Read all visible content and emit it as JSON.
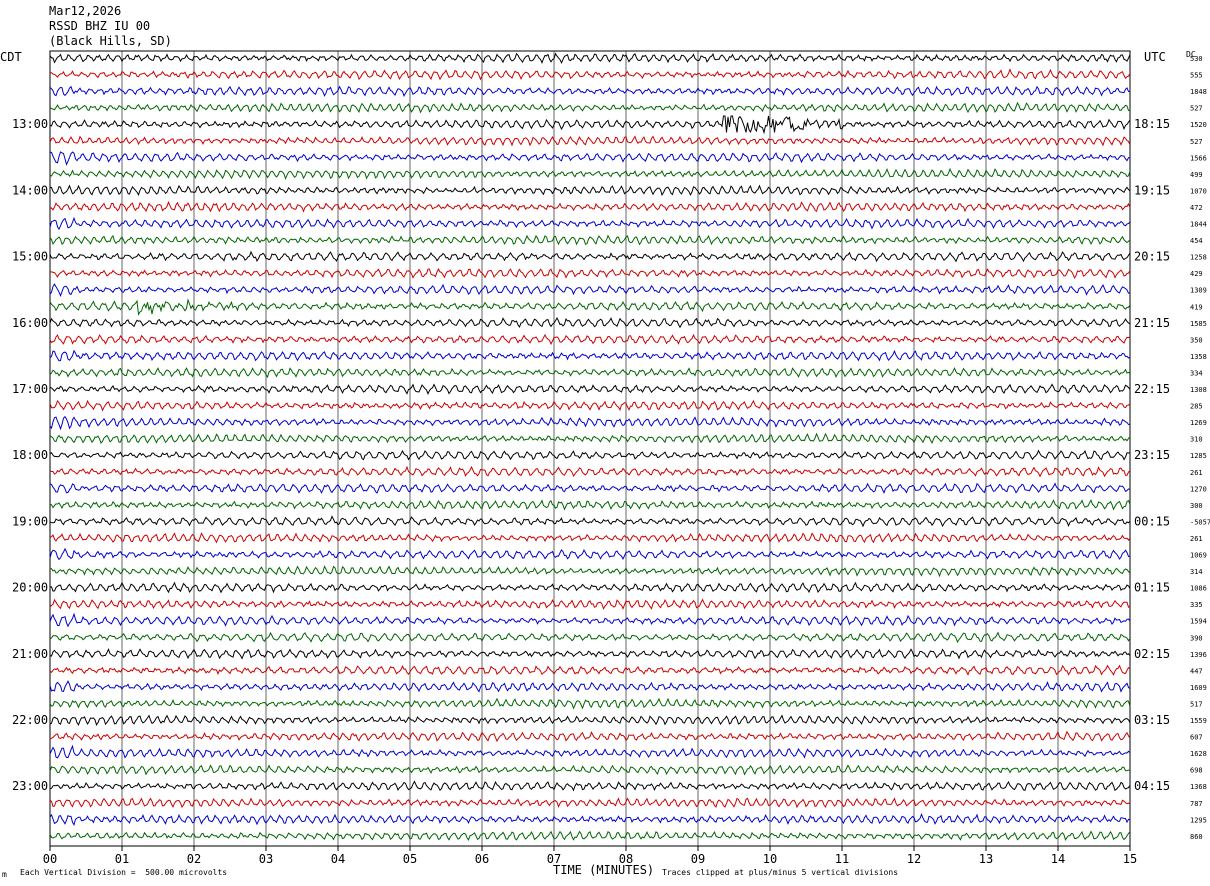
{
  "header": {
    "date": "Mar12,2026",
    "station": "RSSD BHZ IU 00",
    "location": "(Black Hills, SD)"
  },
  "left_zone": "CDT",
  "right_zone": "UTC",
  "dc_label": "DC",
  "footer": {
    "vertical_division": "Each Vertical Division =  500.00 microvolts",
    "clip_note": "Traces clipped at plus/minus 5 vertical divisions",
    "corner_mark": "m"
  },
  "colors": {
    "black": "#000000",
    "red": "#cc0000",
    "blue": "#0000cc",
    "green": "#006600",
    "grid": "#000000"
  },
  "chart_data": {
    "type": "line",
    "title": "",
    "xlabel": "TIME (MINUTES)",
    "ylabel": "",
    "xlim": [
      0,
      15
    ],
    "x_ticks": [
      "00",
      "01",
      "02",
      "03",
      "04",
      "05",
      "06",
      "07",
      "08",
      "09",
      "10",
      "11",
      "12",
      "13",
      "14",
      "15"
    ],
    "trace_count": 48,
    "trace_minutes": 15,
    "color_cycle": [
      "black",
      "red",
      "blue",
      "green"
    ],
    "left_hour_labels": [
      {
        "trace": 4,
        "label": "13:00"
      },
      {
        "trace": 8,
        "label": "14:00"
      },
      {
        "trace": 12,
        "label": "15:00"
      },
      {
        "trace": 16,
        "label": "16:00"
      },
      {
        "trace": 20,
        "label": "17:00"
      },
      {
        "trace": 24,
        "label": "18:00"
      },
      {
        "trace": 28,
        "label": "19:00"
      },
      {
        "trace": 32,
        "label": "20:00"
      },
      {
        "trace": 36,
        "label": "21:00"
      },
      {
        "trace": 40,
        "label": "22:00"
      },
      {
        "trace": 44,
        "label": "23:00"
      }
    ],
    "right_hour_labels": [
      {
        "trace": 4,
        "label": "18:15"
      },
      {
        "trace": 8,
        "label": "19:15"
      },
      {
        "trace": 12,
        "label": "20:15"
      },
      {
        "trace": 16,
        "label": "21:15"
      },
      {
        "trace": 20,
        "label": "22:15"
      },
      {
        "trace": 24,
        "label": "23:15"
      },
      {
        "trace": 28,
        "label": "00:15"
      },
      {
        "trace": 32,
        "label": "01:15"
      },
      {
        "trace": 36,
        "label": "02:15"
      },
      {
        "trace": 40,
        "label": "03:15"
      },
      {
        "trace": 44,
        "label": "04:15"
      }
    ],
    "dc_offsets": [
      "530",
      "555",
      "1848",
      "527",
      "1520",
      "527",
      "1566",
      "499",
      "1070",
      "472",
      "1844",
      "454",
      "1258",
      "429",
      "1309",
      "419",
      "1585",
      "350",
      "1358",
      "334",
      "1308",
      "285",
      "1269",
      "310",
      "1285",
      "261",
      "1270",
      "300",
      "-5057",
      "261",
      "1069",
      "314",
      "1086",
      "335",
      "1594",
      "390",
      "1396",
      "447",
      "1609",
      "517",
      "1559",
      "607",
      "1628",
      "698",
      "1368",
      "787",
      "1295",
      "860"
    ],
    "events": [
      {
        "trace": 4,
        "start_min": 9.35,
        "end_min": 11.0,
        "amplitude": "high"
      },
      {
        "trace": 15,
        "start_min": 1.2,
        "end_min": 2.8,
        "amplitude": "medium"
      }
    ]
  }
}
